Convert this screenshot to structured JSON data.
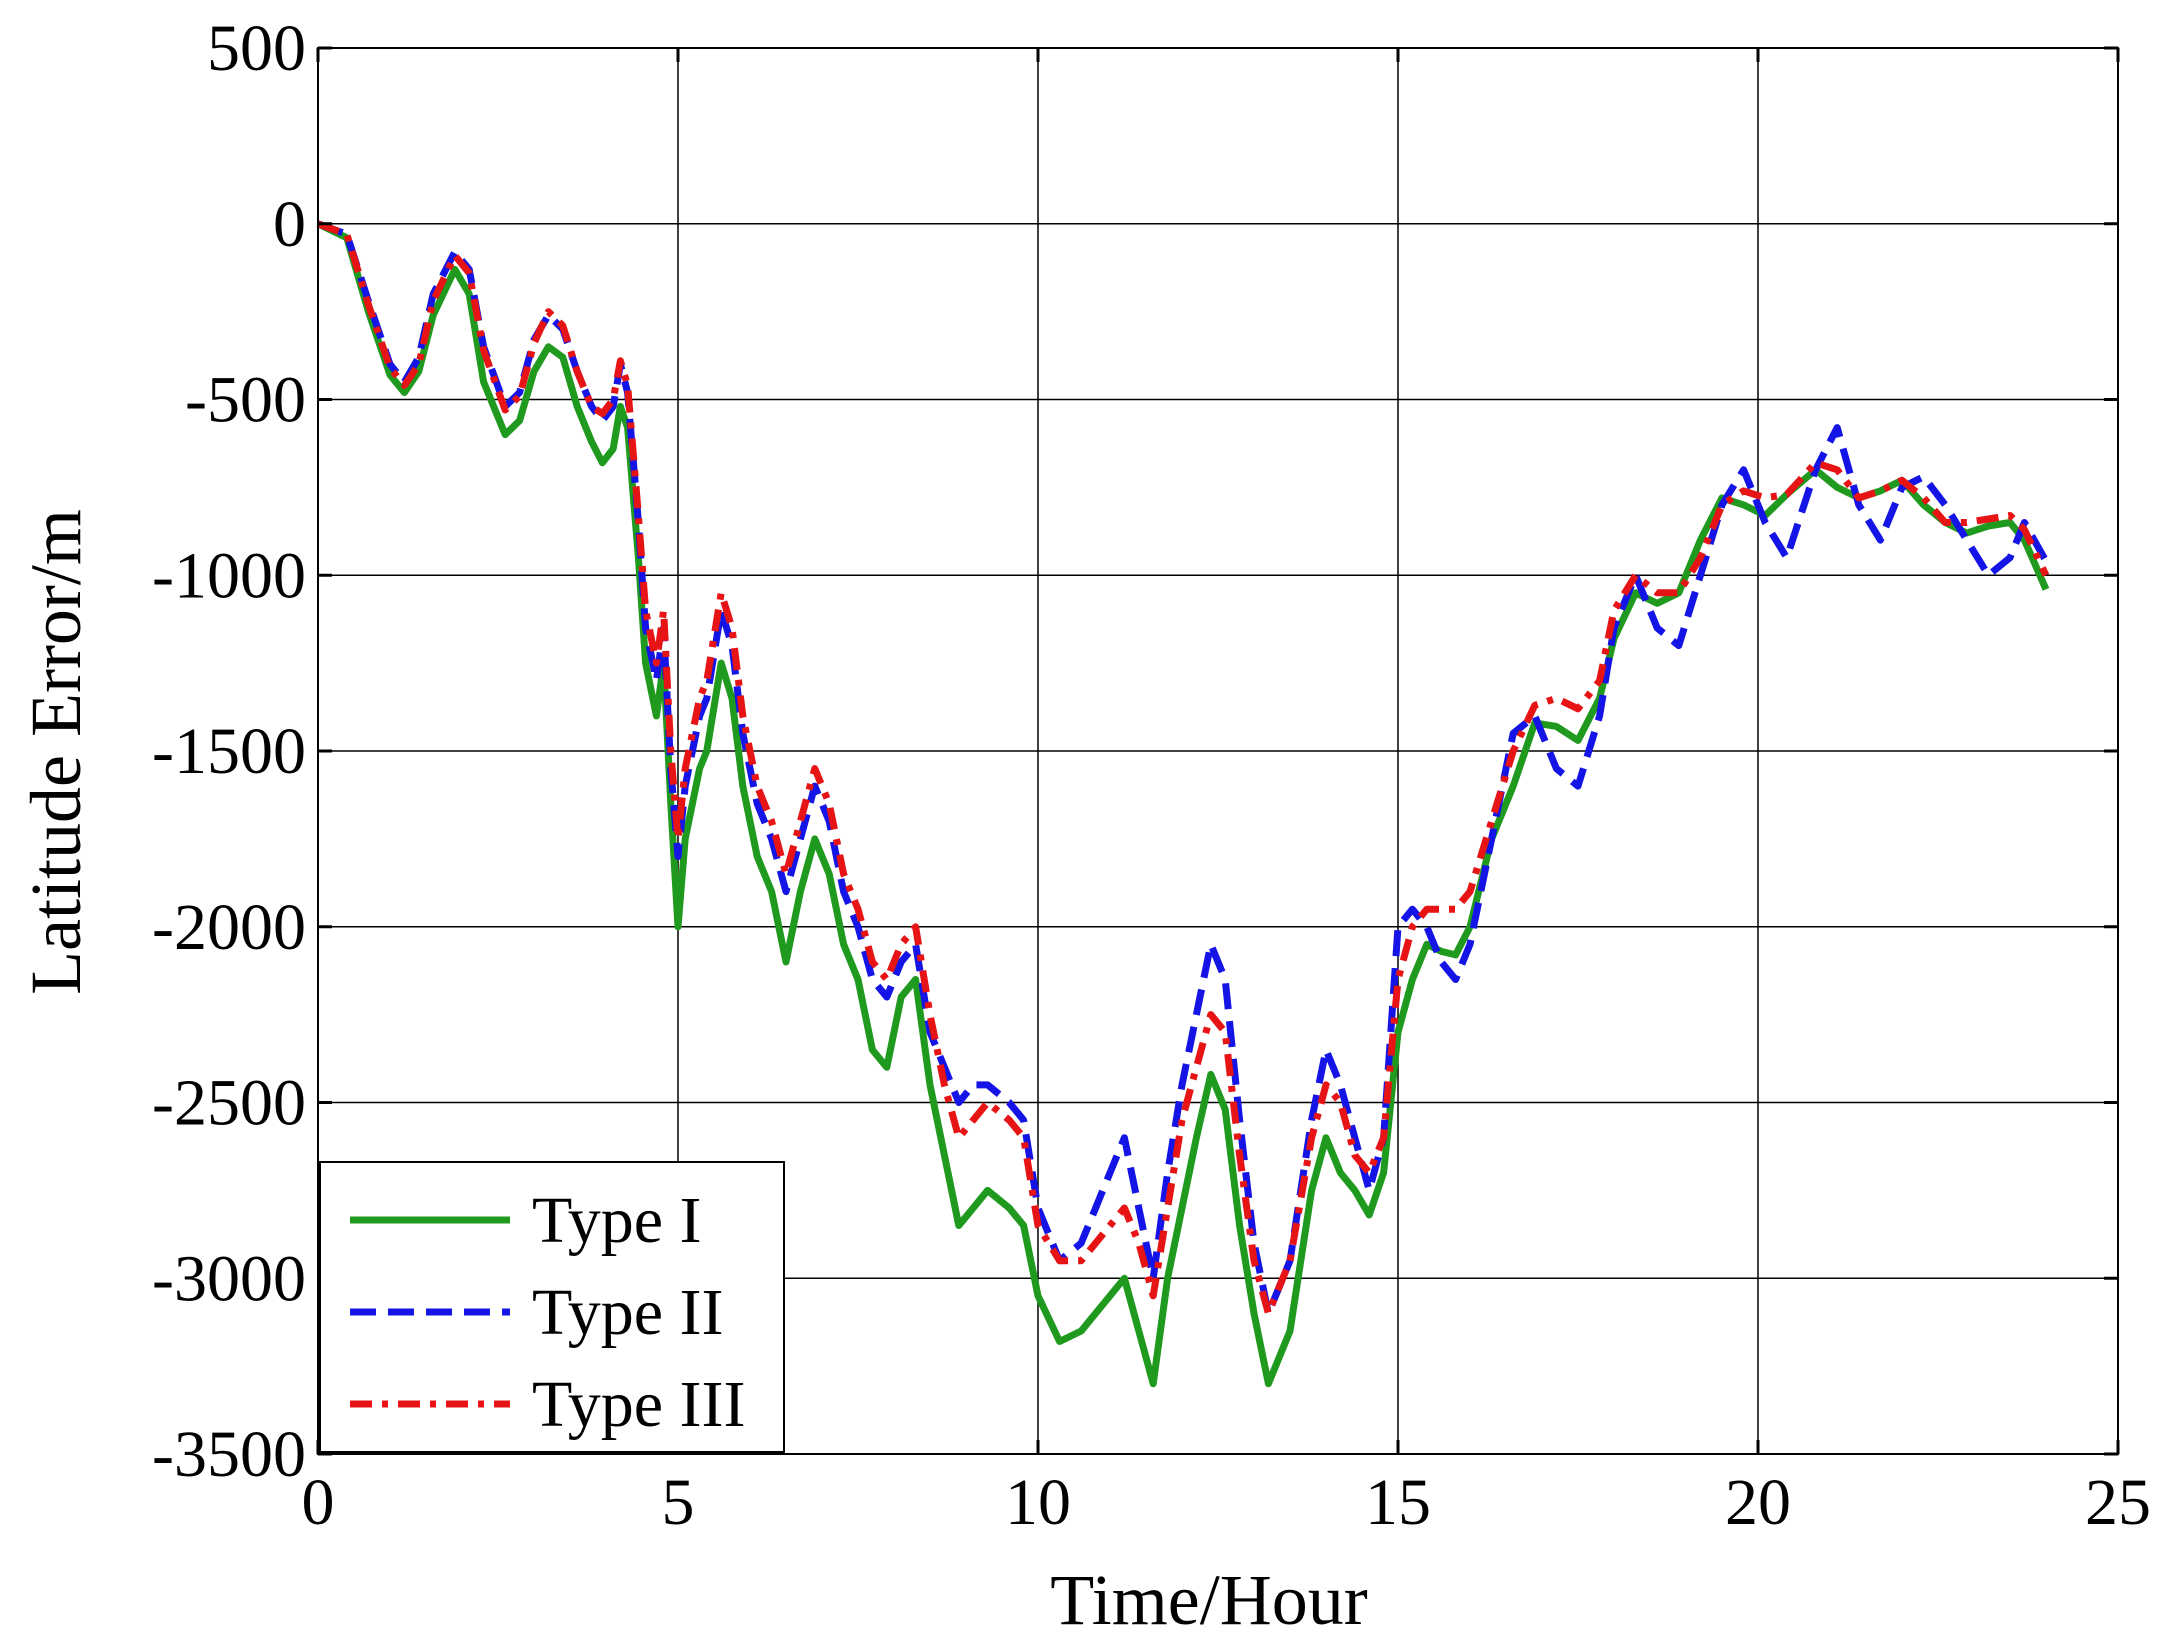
{
  "chart_data": {
    "type": "line",
    "xlabel": "Time/Hour",
    "ylabel": "Latitude Error/m",
    "xlim": [
      0,
      25
    ],
    "ylim": [
      -3500,
      500
    ],
    "xticks": [
      0,
      5,
      10,
      15,
      20,
      25
    ],
    "yticks": [
      -3500,
      -3000,
      -2500,
      -2000,
      -1500,
      -1000,
      -500,
      0,
      500
    ],
    "grid": true,
    "legend_position": "bottom-left",
    "series": [
      {
        "name": "Type I",
        "color": "#1f9a1f",
        "dash": "solid",
        "x": [
          0,
          0.4,
          0.7,
          1.0,
          1.2,
          1.4,
          1.6,
          1.9,
          2.1,
          2.3,
          2.6,
          2.8,
          3.0,
          3.2,
          3.4,
          3.6,
          3.8,
          3.95,
          4.1,
          4.2,
          4.3,
          4.45,
          4.55,
          4.7,
          4.8,
          4.9,
          5.0,
          5.1,
          5.3,
          5.4,
          5.6,
          5.75,
          5.9,
          6.1,
          6.3,
          6.5,
          6.7,
          6.9,
          7.1,
          7.3,
          7.5,
          7.7,
          7.9,
          8.1,
          8.3,
          8.5,
          8.7,
          8.9,
          9.1,
          9.3,
          9.6,
          9.8,
          10.0,
          10.3,
          10.6,
          10.8,
          11.0,
          11.2,
          11.4,
          11.6,
          11.8,
          12.0,
          12.2,
          12.4,
          12.6,
          12.8,
          13.0,
          13.2,
          13.5,
          13.8,
          14.0,
          14.2,
          14.4,
          14.6,
          14.8,
          15.0,
          15.2,
          15.4,
          15.6,
          15.8,
          16.0,
          16.3,
          16.6,
          16.9,
          17.2,
          17.5,
          17.8,
          18.0,
          18.3,
          18.6,
          18.9,
          19.2,
          19.5,
          19.8,
          20.1,
          20.4,
          20.8,
          21.1,
          21.4,
          21.7,
          22.0,
          22.3,
          22.6,
          22.9,
          23.2,
          23.5,
          23.7,
          24.0
        ],
        "y": [
          0,
          -40,
          -250,
          -430,
          -480,
          -420,
          -260,
          -130,
          -200,
          -450,
          -600,
          -560,
          -420,
          -350,
          -380,
          -520,
          -620,
          -680,
          -640,
          -520,
          -580,
          -950,
          -1250,
          -1400,
          -1250,
          -1650,
          -2000,
          -1750,
          -1550,
          -1500,
          -1250,
          -1350,
          -1600,
          -1800,
          -1900,
          -2100,
          -1900,
          -1750,
          -1850,
          -2050,
          -2150,
          -2350,
          -2400,
          -2200,
          -2150,
          -2450,
          -2650,
          -2850,
          -2800,
          -2750,
          -2800,
          -2850,
          -3050,
          -3180,
          -3150,
          -3100,
          -3050,
          -3000,
          -3150,
          -3300,
          -3000,
          -2800,
          -2600,
          -2420,
          -2520,
          -2850,
          -3100,
          -3300,
          -3150,
          -2750,
          -2600,
          -2700,
          -2750,
          -2820,
          -2700,
          -2300,
          -2150,
          -2050,
          -2070,
          -2080,
          -2000,
          -1750,
          -1600,
          -1420,
          -1430,
          -1470,
          -1350,
          -1180,
          -1050,
          -1080,
          -1050,
          -900,
          -780,
          -800,
          -830,
          -770,
          -700,
          -750,
          -780,
          -760,
          -730,
          -800,
          -850,
          -880,
          -860,
          -850,
          -900,
          -1040
        ]
      },
      {
        "name": "Type II",
        "color": "#1414e6",
        "dash": "dashed",
        "x": [
          0,
          0.4,
          0.7,
          1.0,
          1.2,
          1.4,
          1.6,
          1.9,
          2.1,
          2.3,
          2.6,
          2.8,
          3.0,
          3.2,
          3.4,
          3.6,
          3.8,
          3.95,
          4.1,
          4.2,
          4.3,
          4.45,
          4.55,
          4.7,
          4.8,
          4.9,
          5.0,
          5.1,
          5.3,
          5.4,
          5.6,
          5.75,
          5.9,
          6.1,
          6.3,
          6.5,
          6.7,
          6.9,
          7.1,
          7.3,
          7.5,
          7.7,
          7.9,
          8.1,
          8.3,
          8.5,
          8.7,
          8.9,
          9.1,
          9.3,
          9.6,
          9.8,
          10.0,
          10.3,
          10.6,
          10.8,
          11.0,
          11.2,
          11.4,
          11.6,
          11.8,
          12.0,
          12.2,
          12.4,
          12.6,
          12.8,
          13.0,
          13.2,
          13.5,
          13.8,
          14.0,
          14.2,
          14.4,
          14.6,
          14.8,
          15.0,
          15.2,
          15.4,
          15.6,
          15.8,
          16.0,
          16.3,
          16.6,
          16.9,
          17.2,
          17.5,
          17.8,
          18.0,
          18.3,
          18.6,
          18.9,
          19.2,
          19.5,
          19.8,
          20.1,
          20.4,
          20.8,
          21.1,
          21.4,
          21.7,
          22.0,
          22.3,
          22.6,
          22.9,
          23.2,
          23.5,
          23.7,
          24.0
        ],
        "y": [
          0,
          -30,
          -220,
          -400,
          -450,
          -380,
          -200,
          -80,
          -130,
          -350,
          -520,
          -480,
          -330,
          -260,
          -300,
          -420,
          -520,
          -560,
          -520,
          -400,
          -480,
          -850,
          -1150,
          -1300,
          -1150,
          -1550,
          -1800,
          -1600,
          -1400,
          -1350,
          -1100,
          -1200,
          -1450,
          -1650,
          -1750,
          -1900,
          -1750,
          -1600,
          -1700,
          -1900,
          -2000,
          -2150,
          -2200,
          -2100,
          -2050,
          -2300,
          -2400,
          -2500,
          -2450,
          -2450,
          -2500,
          -2550,
          -2800,
          -2950,
          -2900,
          -2800,
          -2700,
          -2600,
          -2800,
          -3000,
          -2700,
          -2450,
          -2250,
          -2050,
          -2150,
          -2550,
          -2900,
          -3100,
          -2950,
          -2550,
          -2350,
          -2450,
          -2600,
          -2750,
          -2600,
          -2000,
          -1950,
          -2000,
          -2100,
          -2150,
          -2050,
          -1750,
          -1450,
          -1400,
          -1550,
          -1600,
          -1400,
          -1150,
          -1000,
          -1150,
          -1200,
          -1000,
          -800,
          -700,
          -850,
          -950,
          -700,
          -580,
          -800,
          -900,
          -750,
          -720,
          -800,
          -900,
          -1000,
          -950,
          -850,
          -960
        ]
      },
      {
        "name": "Type III",
        "color": "#e61414",
        "dash": "dashdot",
        "x": [
          0,
          0.4,
          0.7,
          1.0,
          1.2,
          1.4,
          1.6,
          1.9,
          2.1,
          2.3,
          2.6,
          2.8,
          3.0,
          3.2,
          3.4,
          3.6,
          3.8,
          3.95,
          4.1,
          4.2,
          4.3,
          4.45,
          4.55,
          4.7,
          4.8,
          4.9,
          5.0,
          5.1,
          5.3,
          5.4,
          5.6,
          5.75,
          5.9,
          6.1,
          6.3,
          6.5,
          6.7,
          6.9,
          7.1,
          7.3,
          7.5,
          7.7,
          7.9,
          8.1,
          8.3,
          8.5,
          8.7,
          8.9,
          9.1,
          9.3,
          9.6,
          9.8,
          10.0,
          10.3,
          10.6,
          10.8,
          11.0,
          11.2,
          11.4,
          11.6,
          11.8,
          12.0,
          12.2,
          12.4,
          12.6,
          12.8,
          13.0,
          13.2,
          13.5,
          13.8,
          14.0,
          14.2,
          14.4,
          14.6,
          14.8,
          15.0,
          15.2,
          15.4,
          15.6,
          15.8,
          16.0,
          16.3,
          16.6,
          16.9,
          17.2,
          17.5,
          17.8,
          18.0,
          18.3,
          18.6,
          18.9,
          19.2,
          19.5,
          19.8,
          20.1,
          20.4,
          20.8,
          21.1,
          21.4,
          21.7,
          22.0,
          22.3,
          22.6,
          22.9,
          23.2,
          23.5,
          23.7,
          24.0
        ],
        "y": [
          0,
          -30,
          -230,
          -410,
          -460,
          -400,
          -220,
          -90,
          -140,
          -360,
          -530,
          -490,
          -340,
          -250,
          -290,
          -420,
          -520,
          -540,
          -500,
          -390,
          -460,
          -830,
          -1100,
          -1250,
          -1100,
          -1500,
          -1750,
          -1550,
          -1350,
          -1300,
          -1050,
          -1150,
          -1400,
          -1600,
          -1700,
          -1850,
          -1700,
          -1550,
          -1650,
          -1850,
          -1950,
          -2100,
          -2150,
          -2050,
          -2000,
          -2250,
          -2450,
          -2600,
          -2550,
          -2500,
          -2550,
          -2600,
          -2850,
          -2950,
          -2950,
          -2900,
          -2850,
          -2800,
          -2900,
          -3050,
          -2800,
          -2550,
          -2400,
          -2250,
          -2300,
          -2650,
          -2950,
          -3100,
          -2950,
          -2600,
          -2450,
          -2500,
          -2650,
          -2700,
          -2600,
          -2150,
          -2000,
          -1950,
          -1950,
          -1950,
          -1900,
          -1700,
          -1500,
          -1370,
          -1350,
          -1380,
          -1300,
          -1100,
          -1000,
          -1050,
          -1050,
          -950,
          -800,
          -760,
          -780,
          -770,
          -680,
          -700,
          -780,
          -760,
          -730,
          -780,
          -850,
          -850,
          -840,
          -830,
          -870,
          -1000
        ]
      }
    ]
  }
}
